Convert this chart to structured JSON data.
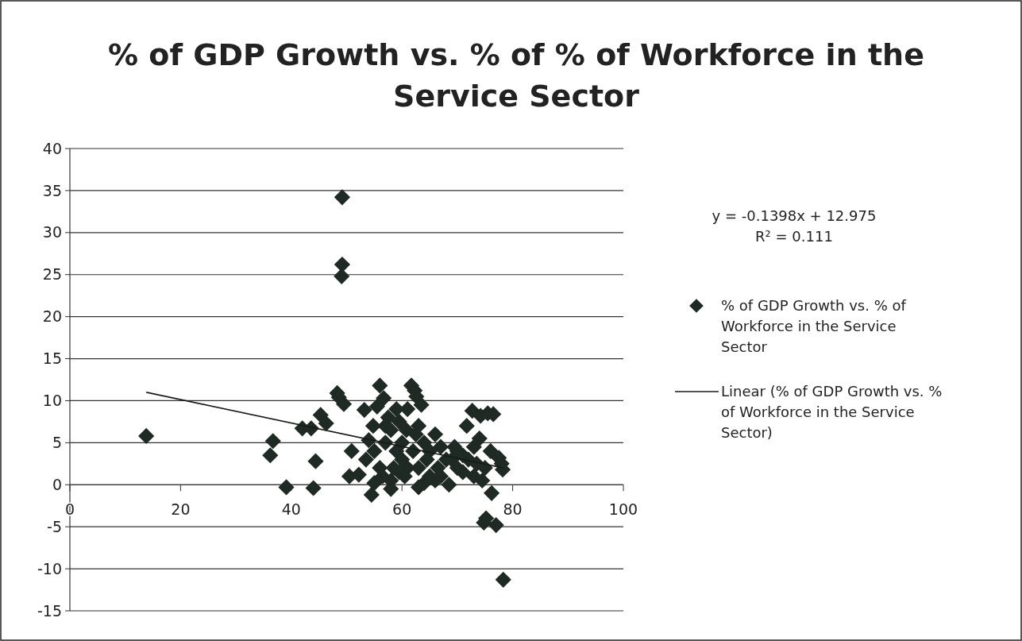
{
  "chart_data": {
    "type": "scatter",
    "title": "% of GDP Growth vs. % of % of Workforce  in the Service Sector",
    "xlim": [
      0,
      100
    ],
    "xticks": [
      0,
      20,
      40,
      60,
      80,
      100
    ],
    "ylim": [
      -15,
      40
    ],
    "yticks": [
      -15,
      -10,
      -5,
      0,
      5,
      10,
      15,
      20,
      25,
      30,
      35,
      40
    ],
    "grid": "y",
    "legend": "right",
    "annotations": [
      "y = -0.1398x + 12.975",
      "R² = 0.111"
    ],
    "series": [
      {
        "name": "% of GDP Growth vs. % of Workforce in the Service Sector",
        "color": "#1f2a24",
        "marker": "diamond",
        "x": [
          13.8,
          36.2,
          36.7,
          39.1,
          42.0,
          43.6,
          44.0,
          44.4,
          45.3,
          46.3,
          48.3,
          48.6,
          49.2,
          49.2,
          49.1,
          49.5,
          50.5,
          50.9,
          52.2,
          53.2,
          54.0,
          54.5,
          55.0,
          55.5,
          56.0,
          56.7,
          57.5,
          58.0,
          58.5,
          59.0,
          59.5,
          60.0,
          60.5,
          61,
          61.7,
          62.3,
          62.6,
          63.5,
          63,
          64,
          64.5,
          65,
          66,
          66.5,
          67,
          68,
          68.5,
          69.5,
          70,
          71,
          71.7,
          72.7,
          73,
          73.5,
          74,
          74.2,
          74.5,
          74.8,
          75.2,
          75.5,
          76,
          76.2,
          76.5,
          77,
          77.5,
          78,
          78.2,
          78.3,
          53.5,
          55,
          56,
          57,
          58,
          60,
          62,
          63,
          65,
          67,
          69,
          72,
          73,
          75,
          57,
          59,
          60.8,
          62.5,
          64,
          66,
          70,
          71,
          54.8,
          56.5,
          58,
          59.5,
          61,
          63
        ],
        "values": [
          5.8,
          3.5,
          5.2,
          -0.3,
          6.7,
          6.7,
          -0.4,
          2.8,
          8.3,
          7.3,
          10.9,
          10.4,
          34.2,
          26.2,
          24.8,
          9.6,
          1.0,
          4.0,
          1.2,
          8.9,
          5.3,
          -1.2,
          0.2,
          9.3,
          11.8,
          10.3,
          8.0,
          6.5,
          2.0,
          4.0,
          7.5,
          5.0,
          1.0,
          9,
          11.8,
          11.2,
          10.5,
          9.5,
          7,
          5,
          3,
          1,
          6,
          2,
          4.5,
          3,
          0,
          4.5,
          2,
          1.5,
          7,
          8.8,
          4.5,
          2.5,
          5.5,
          8.2,
          0.5,
          -4.5,
          -4,
          8.5,
          4,
          -1,
          8.4,
          -4.8,
          3.2,
          2.5,
          1.8,
          -11.3,
          3,
          4,
          2,
          5,
          0.5,
          3,
          4,
          2,
          4,
          1,
          3,
          3,
          1,
          2,
          7,
          9,
          6.5,
          6,
          0.2,
          0.5,
          4,
          3.5,
          7,
          1,
          -0.5,
          1.5,
          2,
          -0.3
        ]
      },
      {
        "name": "Linear (% of GDP Growth vs. % of Workforce in the Service Sector)",
        "type": "line",
        "color": "#1a1a1a",
        "marker": "none",
        "x": [
          13.8,
          78.3
        ],
        "values": [
          11,
          2
        ]
      }
    ]
  }
}
